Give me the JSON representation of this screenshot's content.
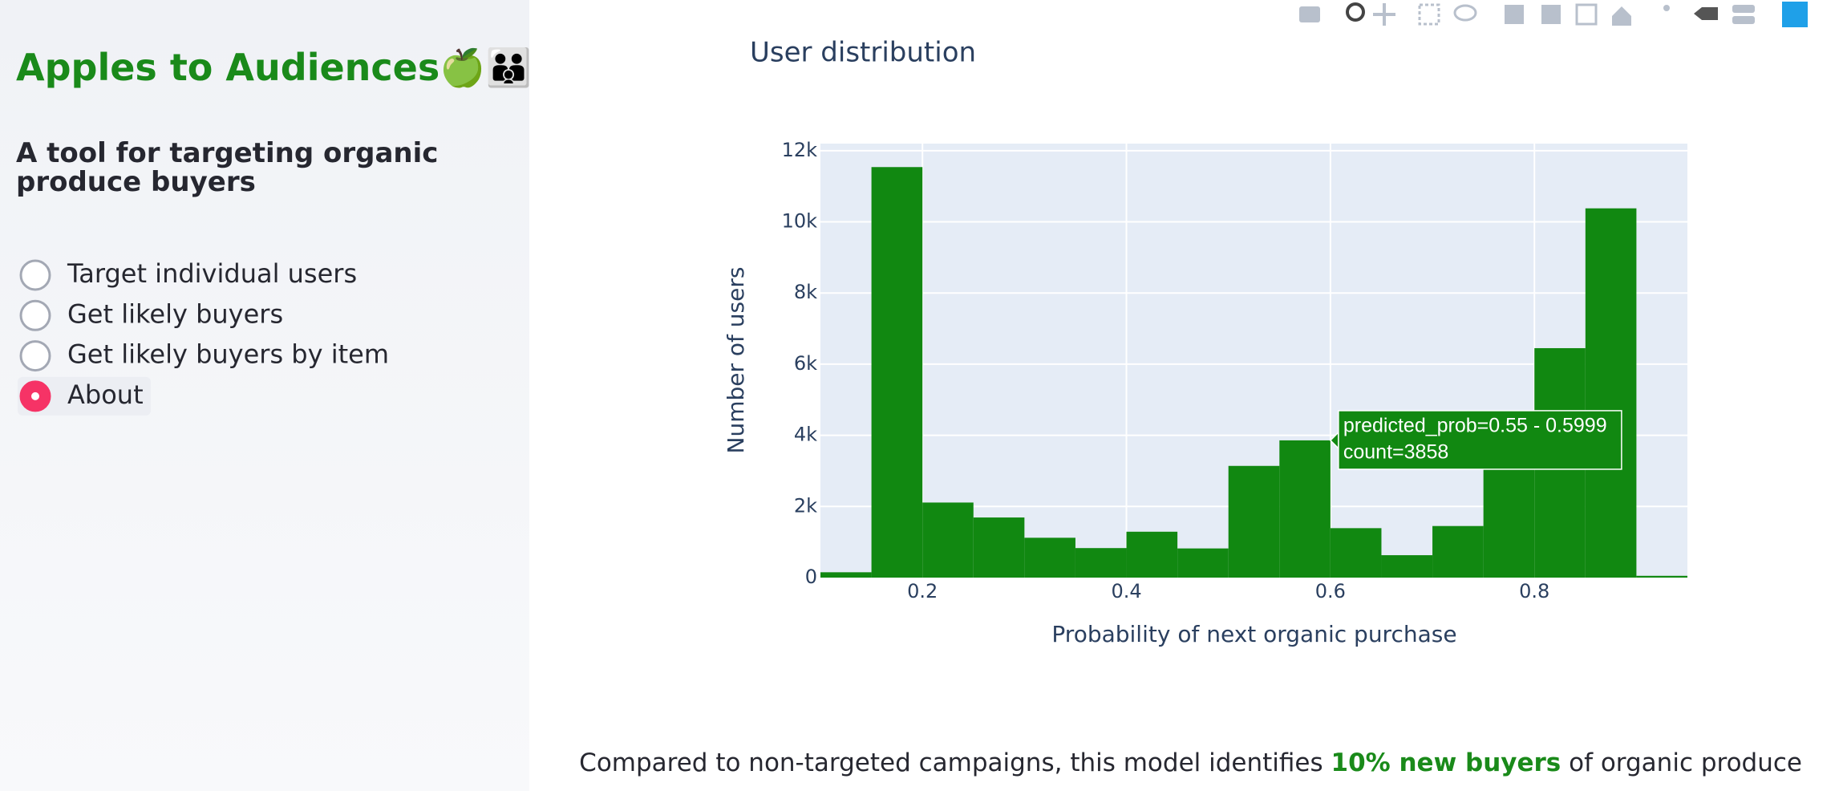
{
  "sidebar": {
    "title": "Apples to Audiences🍏👪",
    "subtitle": "A tool for targeting organic produce buyers",
    "options": [
      "Target individual users",
      "Get likely buyers",
      "Get likely buyers by item",
      "About"
    ],
    "selected": 3
  },
  "chart_data": {
    "type": "histogram",
    "title": "User distribution",
    "x_label": "Probability of next organic purchase",
    "y_label": "Number of users",
    "bins": [
      0.1,
      0.15,
      0.2,
      0.25,
      0.3,
      0.35,
      0.4,
      0.45,
      0.5,
      0.55,
      0.6,
      0.65,
      0.7,
      0.75,
      0.8,
      0.85,
      0.9,
      0.95
    ],
    "values": [
      150,
      11540,
      2110,
      1690,
      1120,
      830,
      1290,
      820,
      3140,
      3858,
      1390,
      630,
      1450,
      3100,
      6450,
      10380,
      50
    ],
    "color": "#118811",
    "xlim": [
      0.1,
      0.95
    ],
    "xticks": [
      0.2,
      0.4,
      0.6,
      0.8
    ],
    "ylim": [
      0,
      12200
    ],
    "yticks": [
      0,
      {
        "value": 2000,
        "label": "2k"
      },
      {
        "value": 4000,
        "label": "4k"
      },
      {
        "value": 6000,
        "label": "6k"
      },
      {
        "value": 8000,
        "label": "8k"
      },
      {
        "value": 10000,
        "label": "10k"
      },
      {
        "value": 12000,
        "label": "12k"
      }
    ],
    "grid": true,
    "tooltip": {
      "bar": 9,
      "lines": [
        "predicted_prob=0.55 - 0.5999",
        "count=3858"
      ]
    }
  },
  "footer": {
    "before": "Compared to non-targeted campaigns, this model identifies ",
    "highlight": "10% new buyers",
    "after": " of organic produce"
  }
}
